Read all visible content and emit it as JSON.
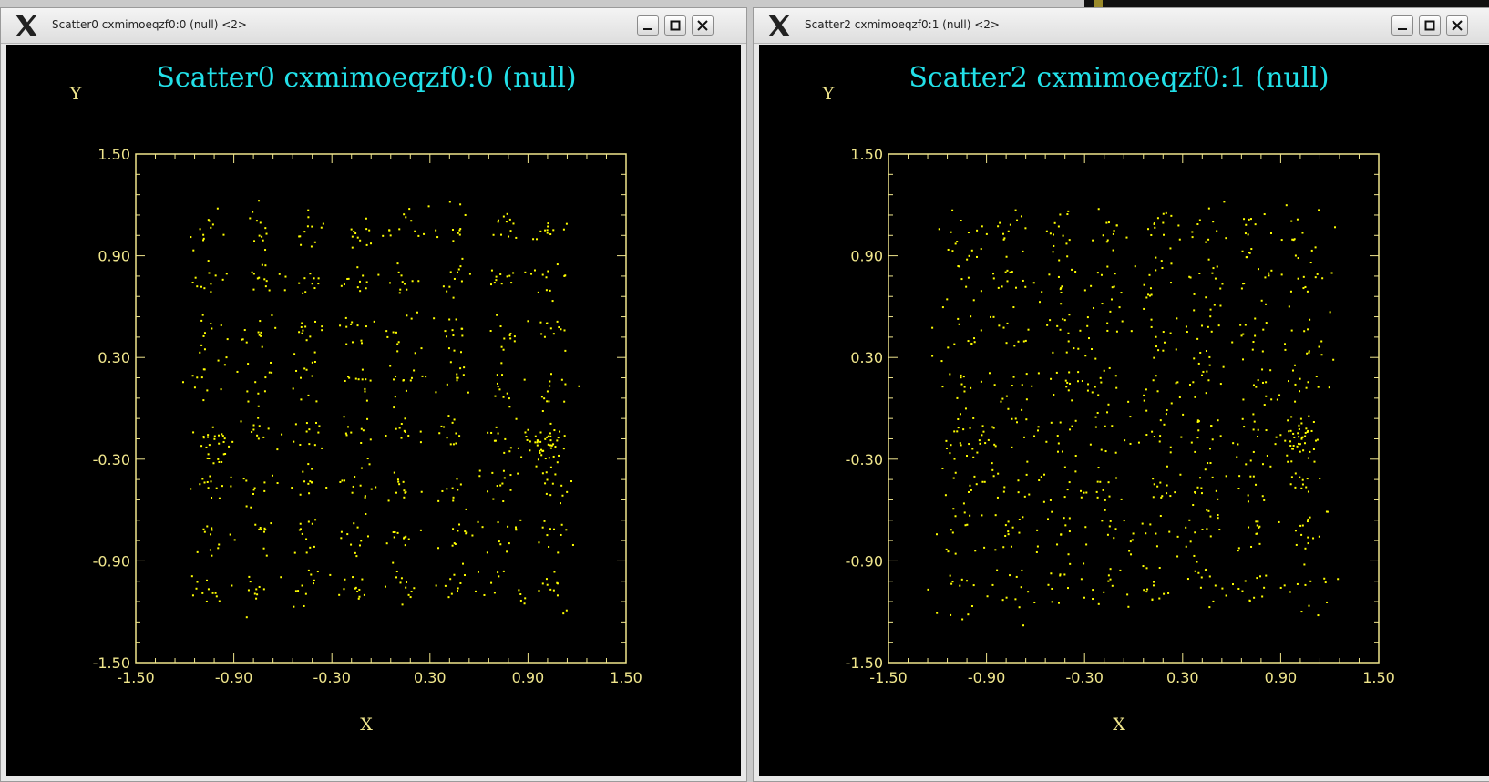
{
  "windows": [
    {
      "title": "Scatter0 cxmimoeqzf0:0 (null) <2>",
      "icons": {
        "logo": "x-logo-icon",
        "minimize": "minimize-icon",
        "maximize": "maximize-icon",
        "close": "close-icon"
      },
      "chart_data": {
        "type": "scatter",
        "title": "Scatter0 cxmimoeqzf0:0 (null)",
        "xlabel": "X",
        "ylabel": "Y",
        "xlim": [
          -1.5,
          1.5
        ],
        "ylim": [
          -1.5,
          1.5
        ],
        "xticks": [
          "-1.50",
          "-0.90",
          "-0.30",
          "0.30",
          "0.90",
          "1.50"
        ],
        "yticks": [
          "1.50",
          "0.90",
          "0.30",
          "-0.30",
          "-0.90",
          "-1.50"
        ],
        "grid": false,
        "point_color": "#ffff00",
        "clusters": {
          "centers": [
            -1.05,
            -0.75,
            -0.45,
            -0.15,
            0.15,
            0.45,
            0.75,
            1.05
          ],
          "points_per_cluster": 12,
          "spread": 0.06
        },
        "dense_clusters": [
          {
            "x": 1.0,
            "y": -0.25,
            "points": 40
          },
          {
            "x": -1.0,
            "y": -0.25,
            "points": 16
          }
        ]
      }
    },
    {
      "title": "Scatter2 cxmimoeqzf0:1 (null) <2>",
      "icons": {
        "logo": "x-logo-icon",
        "minimize": "minimize-icon",
        "maximize": "maximize-icon",
        "close": "close-icon"
      },
      "chart_data": {
        "type": "scatter",
        "title": "Scatter2 cxmimoeqzf0:1 (null)",
        "xlabel": "X",
        "ylabel": "Y",
        "xlim": [
          -1.5,
          1.5
        ],
        "ylim": [
          -1.5,
          1.5
        ],
        "xticks": [
          "-1.50",
          "-0.90",
          "-0.30",
          "0.30",
          "0.90",
          "1.50"
        ],
        "yticks": [
          "1.50",
          "0.90",
          "0.30",
          "-0.30",
          "-0.90",
          "-1.50"
        ],
        "grid": false,
        "point_color": "#ffff00",
        "clusters": {
          "centers": [
            -1.05,
            -0.75,
            -0.45,
            -0.15,
            0.15,
            0.45,
            0.75,
            1.05
          ],
          "points_per_cluster": 13,
          "spread": 0.08
        },
        "dense_clusters": [
          {
            "x": 1.0,
            "y": -0.2,
            "points": 35
          },
          {
            "x": -1.0,
            "y": -0.25,
            "points": 14
          }
        ]
      }
    }
  ]
}
